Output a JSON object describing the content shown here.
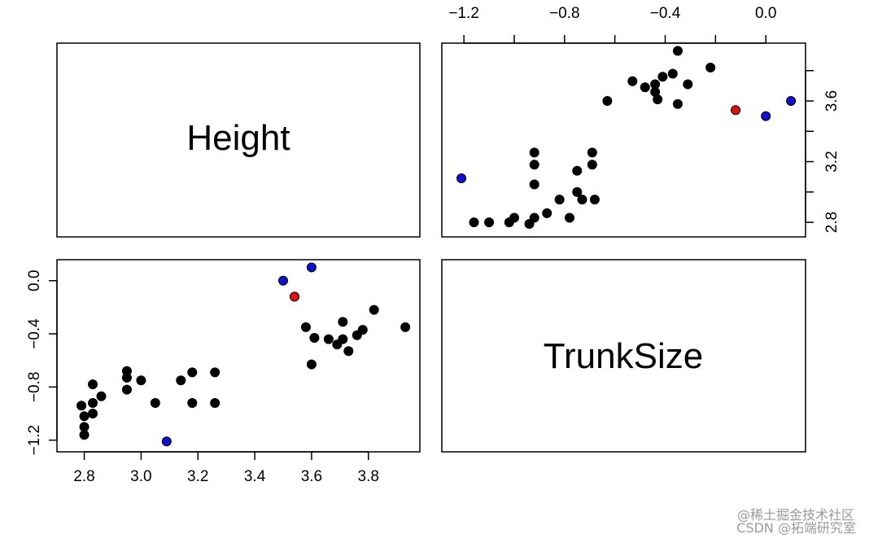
{
  "chart_data": {
    "type": "scatter",
    "layout": "pairs-matrix",
    "variables": [
      "Height",
      "TrunkSize"
    ],
    "height_ticks": [
      "2.8",
      "3.0",
      "3.2",
      "3.4",
      "3.6",
      "3.8"
    ],
    "trunk_ticks": [
      "−1.2",
      "−0.8",
      "−0.4",
      "0.0"
    ],
    "height_tick_values": [
      2.8,
      3.0,
      3.2,
      3.4,
      3.6,
      3.8
    ],
    "trunk_tick_values": [
      -1.2,
      -0.8,
      -0.4,
      0.0
    ],
    "height_range": [
      2.755,
      3.93
    ],
    "trunk_range": [
      -1.23,
      0.1
    ],
    "colors": {
      "default": "#000000",
      "blue": "#1010cc",
      "red": "#dd1111"
    },
    "points": [
      {
        "height": 2.79,
        "trunk": -0.94,
        "color": "default"
      },
      {
        "height": 2.8,
        "trunk": -1.02,
        "color": "default"
      },
      {
        "height": 2.8,
        "trunk": -1.1,
        "color": "default"
      },
      {
        "height": 2.8,
        "trunk": -1.16,
        "color": "default"
      },
      {
        "height": 2.83,
        "trunk": -0.78,
        "color": "default"
      },
      {
        "height": 2.83,
        "trunk": -0.92,
        "color": "default"
      },
      {
        "height": 2.83,
        "trunk": -1.0,
        "color": "default"
      },
      {
        "height": 2.86,
        "trunk": -0.87,
        "color": "default"
      },
      {
        "height": 2.95,
        "trunk": -0.68,
        "color": "default"
      },
      {
        "height": 2.95,
        "trunk": -0.73,
        "color": "default"
      },
      {
        "height": 2.95,
        "trunk": -0.82,
        "color": "default"
      },
      {
        "height": 3.0,
        "trunk": -0.75,
        "color": "default"
      },
      {
        "height": 3.05,
        "trunk": -0.92,
        "color": "default"
      },
      {
        "height": 3.09,
        "trunk": -1.21,
        "color": "blue"
      },
      {
        "height": 3.14,
        "trunk": -0.75,
        "color": "default"
      },
      {
        "height": 3.18,
        "trunk": -0.69,
        "color": "default"
      },
      {
        "height": 3.18,
        "trunk": -0.92,
        "color": "default"
      },
      {
        "height": 3.26,
        "trunk": -0.69,
        "color": "default"
      },
      {
        "height": 3.26,
        "trunk": -0.92,
        "color": "default"
      },
      {
        "height": 3.5,
        "trunk": 0.0,
        "color": "blue"
      },
      {
        "height": 3.54,
        "trunk": -0.12,
        "color": "red"
      },
      {
        "height": 3.58,
        "trunk": -0.35,
        "color": "default"
      },
      {
        "height": 3.6,
        "trunk": 0.1,
        "color": "blue"
      },
      {
        "height": 3.6,
        "trunk": -0.63,
        "color": "default"
      },
      {
        "height": 3.61,
        "trunk": -0.43,
        "color": "default"
      },
      {
        "height": 3.66,
        "trunk": -0.44,
        "color": "default"
      },
      {
        "height": 3.69,
        "trunk": -0.48,
        "color": "default"
      },
      {
        "height": 3.71,
        "trunk": -0.44,
        "color": "default"
      },
      {
        "height": 3.71,
        "trunk": -0.31,
        "color": "default"
      },
      {
        "height": 3.73,
        "trunk": -0.53,
        "color": "default"
      },
      {
        "height": 3.76,
        "trunk": -0.41,
        "color": "default"
      },
      {
        "height": 3.78,
        "trunk": -0.37,
        "color": "default"
      },
      {
        "height": 3.82,
        "trunk": -0.22,
        "color": "default"
      },
      {
        "height": 3.93,
        "trunk": -0.35,
        "color": "default"
      }
    ]
  },
  "watermark": {
    "line1": "@稀土掘金技术社区",
    "line2": "CSDN @拓端研究室"
  }
}
